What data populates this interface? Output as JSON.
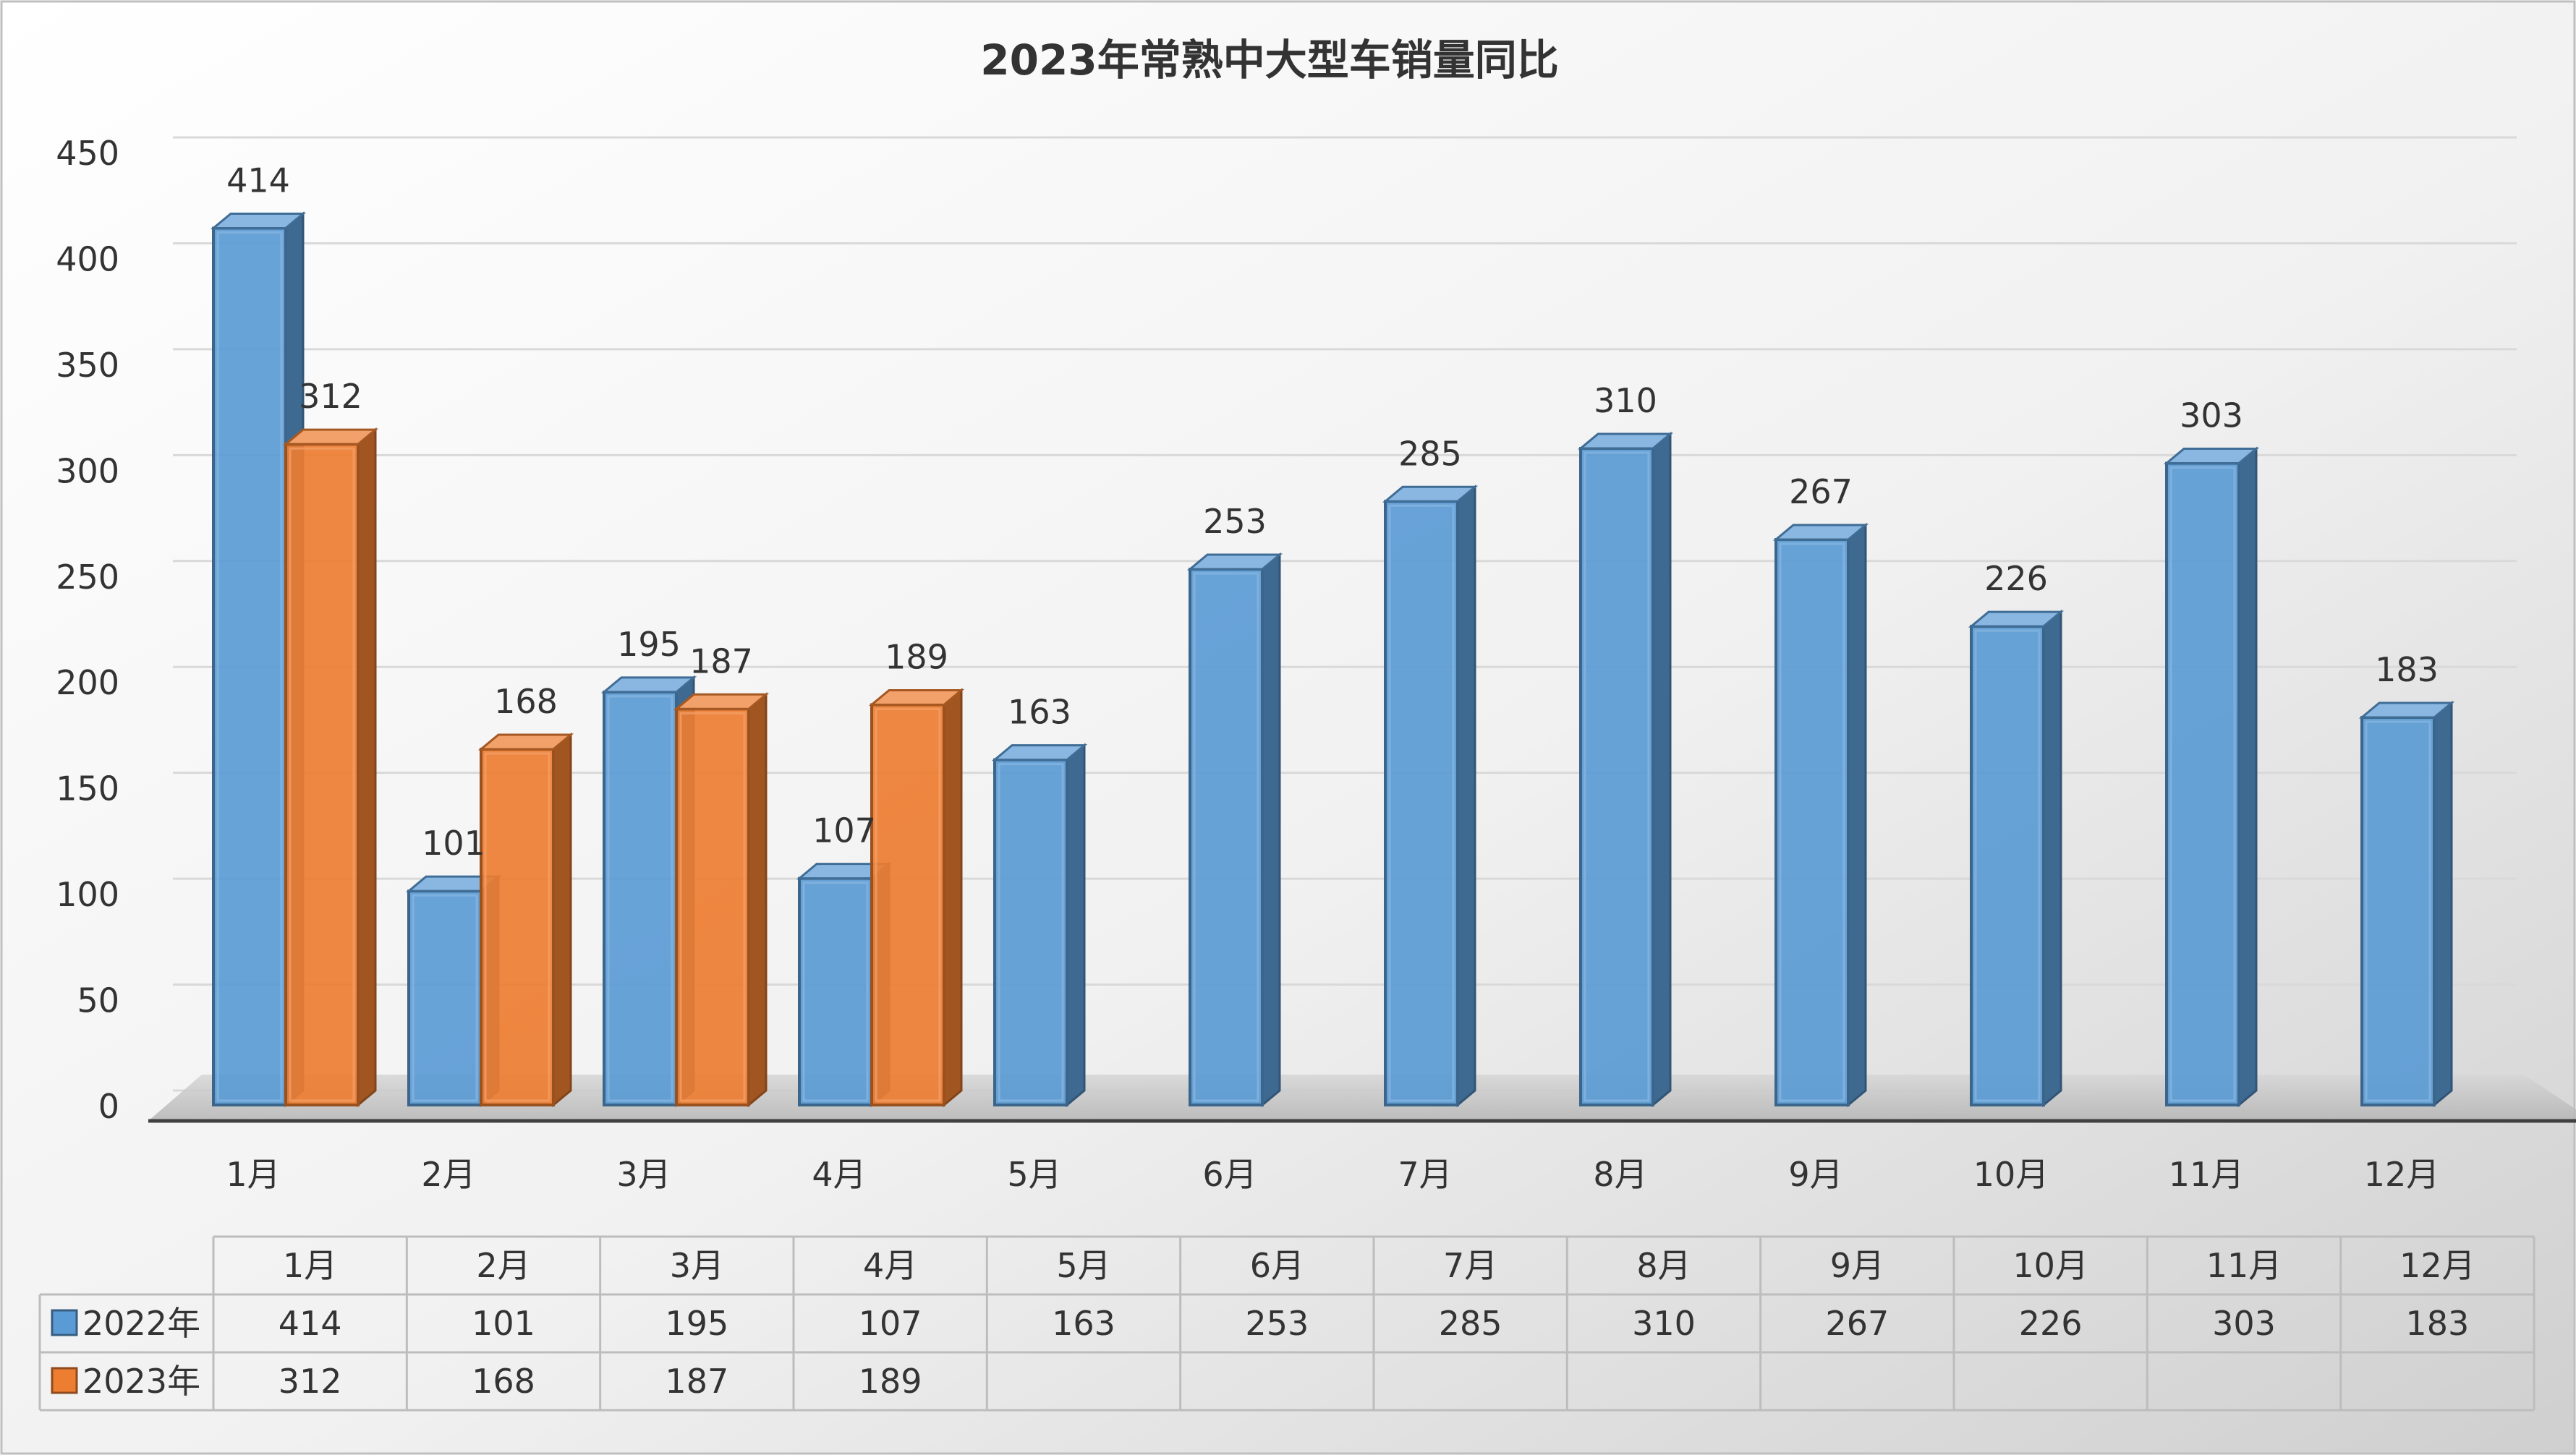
{
  "chart_data": {
    "type": "bar",
    "title": "2023年常熟中大型车销量同比",
    "categories": [
      "1月",
      "2月",
      "3月",
      "4月",
      "5月",
      "6月",
      "7月",
      "8月",
      "9月",
      "10月",
      "11月",
      "12月"
    ],
    "series": [
      {
        "name": "2022年",
        "color": "#5B9BD5",
        "values": [
          414,
          101,
          195,
          107,
          163,
          253,
          285,
          310,
          267,
          226,
          303,
          183
        ]
      },
      {
        "name": "2023年",
        "color": "#ED7D31",
        "values": [
          312,
          168,
          187,
          189,
          null,
          null,
          null,
          null,
          null,
          null,
          null,
          null
        ]
      }
    ],
    "ylim": [
      0,
      450
    ],
    "ytick_step": 50,
    "grid": true,
    "legend": "data-table",
    "data_table": true
  }
}
